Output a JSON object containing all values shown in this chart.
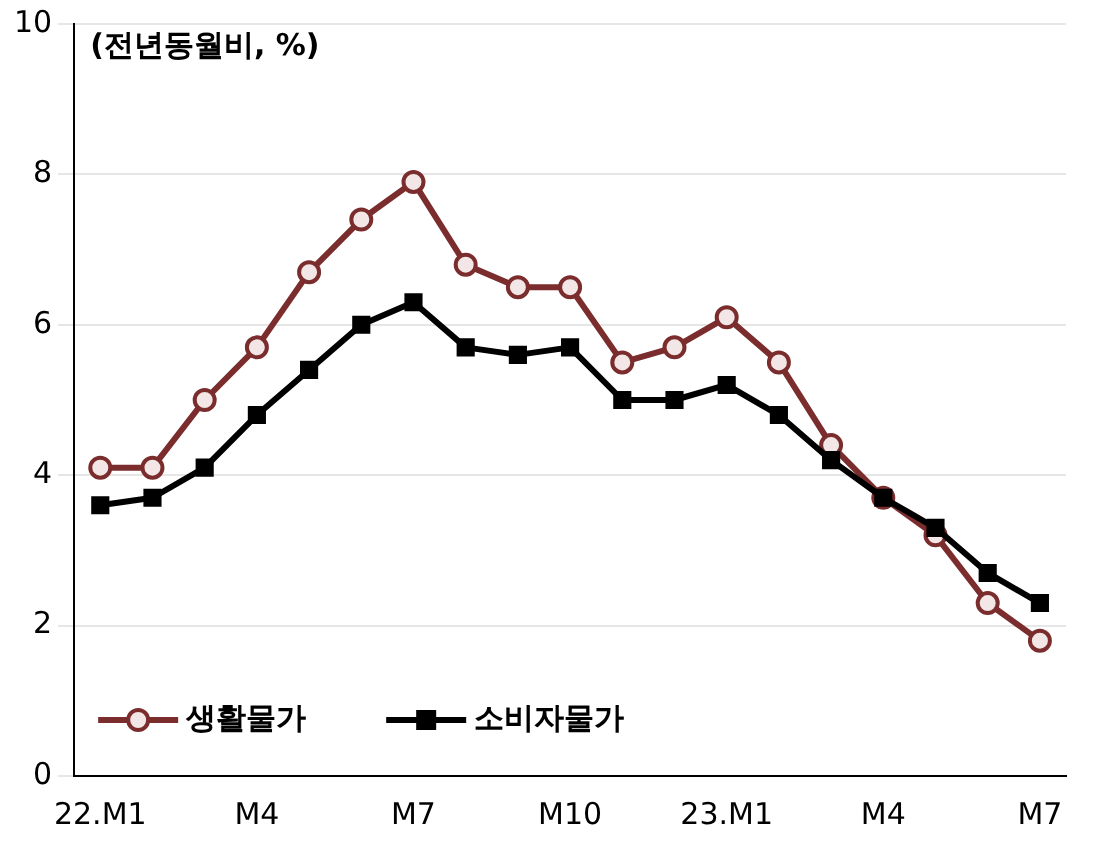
{
  "chart_data": {
    "type": "line",
    "annotations": [
      "(전년동월비, %)"
    ],
    "categories": [
      "22.M1",
      null,
      null,
      "M4",
      null,
      null,
      "M7",
      null,
      null,
      "M10",
      null,
      null,
      "23.M1",
      null,
      null,
      "M4",
      null,
      null,
      "M7"
    ],
    "series": [
      {
        "name": "생활물가",
        "color": "#7b2c2c",
        "marker": "circle",
        "values": [
          4.1,
          4.1,
          5.0,
          5.7,
          6.7,
          7.4,
          7.9,
          6.8,
          6.5,
          6.5,
          5.5,
          5.7,
          6.1,
          5.5,
          4.4,
          3.7,
          3.2,
          2.3,
          1.8
        ]
      },
      {
        "name": "소비자물가",
        "color": "#000000",
        "marker": "square",
        "values": [
          3.6,
          3.7,
          4.1,
          4.8,
          5.4,
          6.0,
          6.3,
          5.7,
          5.6,
          5.7,
          5.0,
          5.0,
          5.2,
          4.8,
          4.2,
          3.7,
          3.3,
          2.7,
          2.3
        ]
      }
    ],
    "ylim": [
      0,
      10
    ],
    "yticks": [
      0,
      2,
      4,
      6,
      8,
      10
    ],
    "grid": "y",
    "legend": "bottom",
    "line_style": "solid"
  }
}
